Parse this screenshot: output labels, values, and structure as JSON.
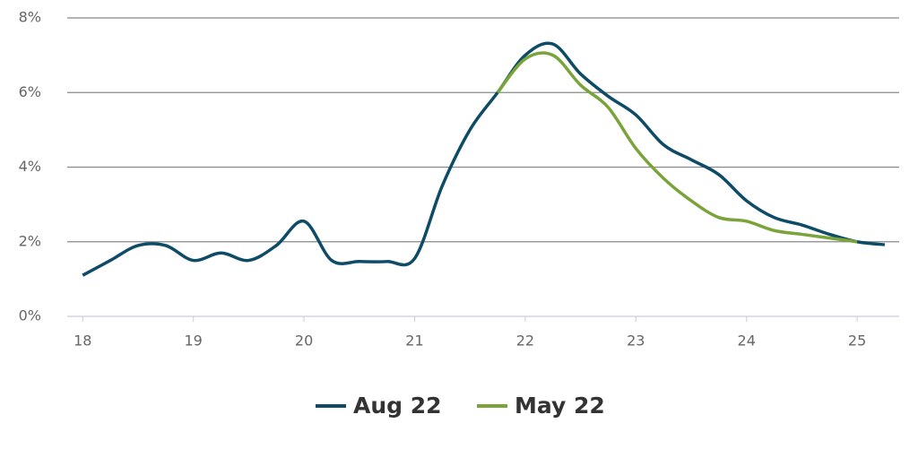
{
  "chart_data": {
    "type": "line",
    "x": [
      18,
      18.25,
      18.5,
      18.75,
      19,
      19.25,
      19.5,
      19.75,
      20,
      20.25,
      20.5,
      20.75,
      21,
      21.25,
      21.5,
      21.75,
      22,
      22.25,
      22.5,
      22.75,
      23,
      23.25,
      23.5,
      23.75,
      24,
      24.25,
      24.5,
      24.75,
      25,
      25.25
    ],
    "series": [
      {
        "name": "Aug 22",
        "color": "#0e4b66",
        "values": [
          1.1,
          1.5,
          1.9,
          1.9,
          1.5,
          1.7,
          1.5,
          1.9,
          2.55,
          1.5,
          1.47,
          1.47,
          1.55,
          3.5,
          5.0,
          6.0,
          7.0,
          7.3,
          6.5,
          5.9,
          5.4,
          4.6,
          4.2,
          3.8,
          3.1,
          2.65,
          2.45,
          2.2,
          2.0,
          1.92
        ]
      },
      {
        "name": "May 22",
        "color": "#7aa43a",
        "values": [
          null,
          null,
          null,
          null,
          null,
          null,
          null,
          null,
          null,
          null,
          null,
          null,
          null,
          null,
          null,
          6.0,
          6.9,
          7.0,
          6.2,
          5.6,
          4.5,
          3.7,
          3.1,
          2.65,
          2.55,
          2.3,
          2.2,
          2.1,
          2.0,
          null
        ]
      }
    ],
    "xlim": [
      17.86,
      25.38
    ],
    "xticks": [
      18,
      19,
      20,
      21,
      22,
      23,
      24,
      25
    ],
    "ylim": [
      0,
      8
    ],
    "yticks": [
      {
        "value": 0,
        "label": "0%"
      },
      {
        "value": 2,
        "label": "2%"
      },
      {
        "value": 4,
        "label": "4%"
      },
      {
        "value": 6,
        "label": "6%"
      },
      {
        "value": 8,
        "label": "8%"
      }
    ],
    "grid": true,
    "legend": "bottom"
  }
}
